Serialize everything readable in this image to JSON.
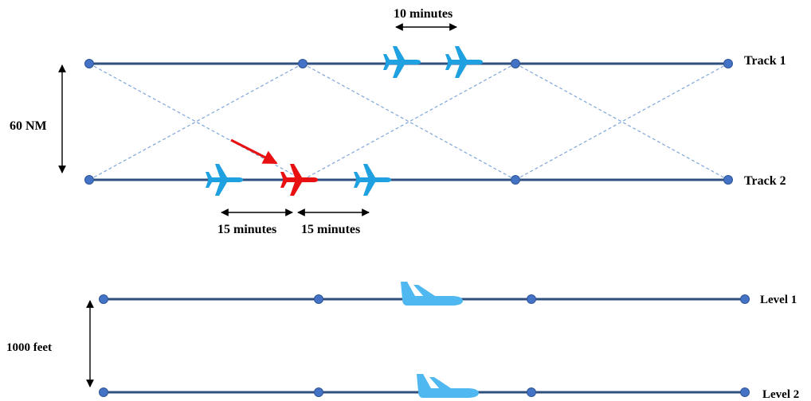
{
  "labels": {
    "track_1": "Track 1",
    "track_2": "Track 2",
    "level_1": "Level 1",
    "level_2": "Level 2",
    "lateral_separation": "60 NM",
    "vertical_separation": "1000 feet",
    "gap_top": "10 minutes",
    "gap_left": "15 minutes",
    "gap_right": "15 minutes"
  },
  "colors": {
    "track_line": "#2f4f7f",
    "node": "#4472c4",
    "aircraft": "#1fa0e0",
    "aircraft_light": "#4fb8f0",
    "highlight_aircraft": "#e81010",
    "highlight_arrow": "#e81010",
    "crossing_lines": "#7fa6d9"
  },
  "icons": {
    "aircraft_top": "airplane-top-view-icon",
    "aircraft_side": "airplane-side-view-icon"
  }
}
